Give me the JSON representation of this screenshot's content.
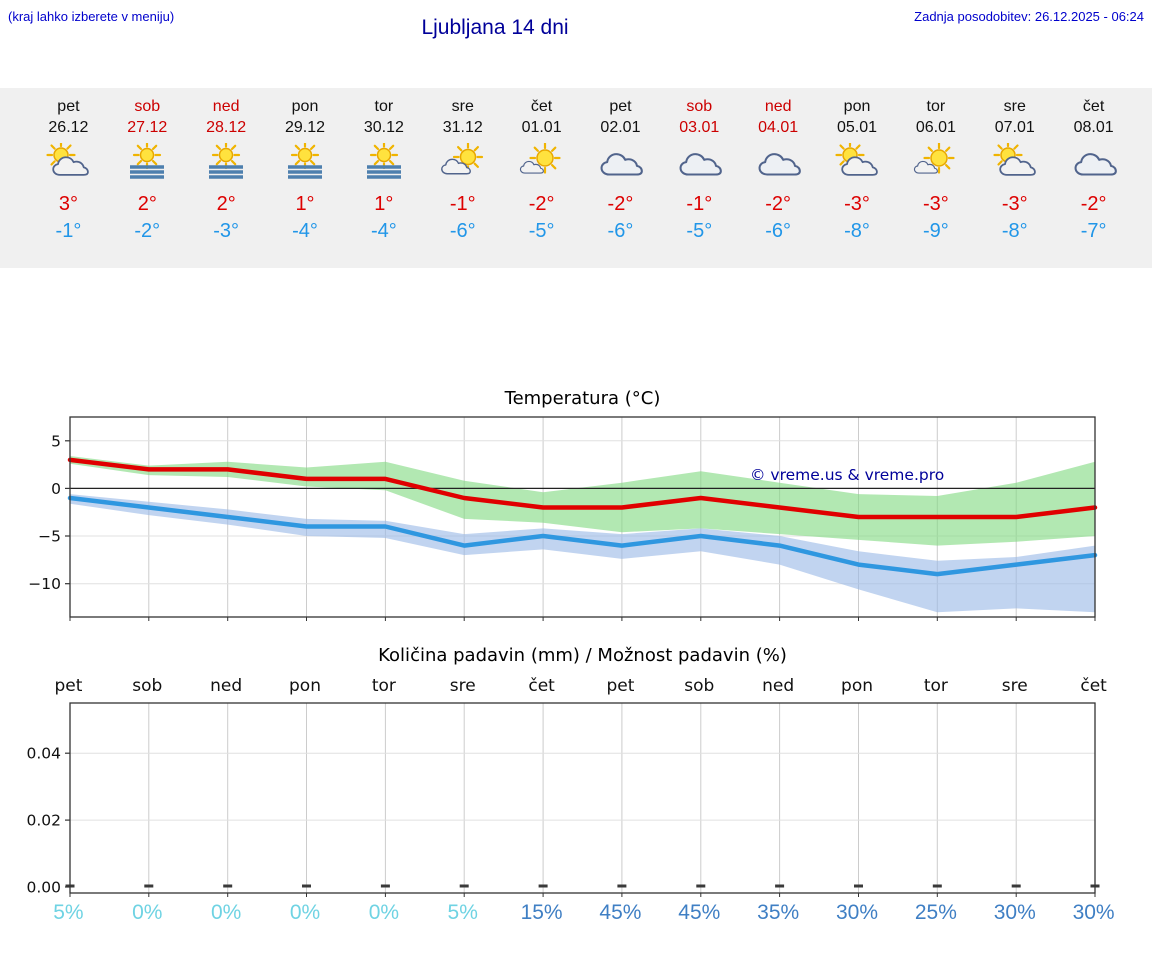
{
  "header": {
    "menu_hint": "(kraj lahko izberete v meniju)",
    "title": "Ljubljana 14 dni",
    "last_updated": "Zadnja posodobitev: 26.12.2025 - 06:24"
  },
  "colors": {
    "header_blue": "#0000cc",
    "title_blue": "#000099",
    "high_red": "#dd0000",
    "low_blue": "#2196e8",
    "weekend_red": "#cc0000",
    "strip_bg": "#f0f0f0",
    "temp_max_line": "#e00000",
    "temp_min_line": "#2f97e0",
    "temp_max_band": "#7ed87e",
    "temp_min_band": "#97b7e6",
    "percent_low": "#6fd3e3",
    "percent_high": "#3f7fc4"
  },
  "days": [
    {
      "name": "pet",
      "date": "26.12",
      "weekend": false,
      "icon": "partly-cloudy-icon",
      "high": "3°",
      "low": "-1°"
    },
    {
      "name": "sob",
      "date": "27.12",
      "weekend": true,
      "icon": "fog-sun-icon",
      "high": "2°",
      "low": "-2°"
    },
    {
      "name": "ned",
      "date": "28.12",
      "weekend": true,
      "icon": "fog-sun-icon",
      "high": "2°",
      "low": "-3°"
    },
    {
      "name": "pon",
      "date": "29.12",
      "weekend": false,
      "icon": "fog-sun-icon",
      "high": "1°",
      "low": "-4°"
    },
    {
      "name": "tor",
      "date": "30.12",
      "weekend": false,
      "icon": "fog-sun-icon",
      "high": "1°",
      "low": "-4°"
    },
    {
      "name": "sre",
      "date": "31.12",
      "weekend": false,
      "icon": "sun-cloud-icon",
      "high": "-1°",
      "low": "-6°"
    },
    {
      "name": "čet",
      "date": "01.01",
      "weekend": false,
      "icon": "mostly-sunny-icon",
      "high": "-2°",
      "low": "-5°"
    },
    {
      "name": "pet",
      "date": "02.01",
      "weekend": false,
      "icon": "cloudy-icon",
      "high": "-2°",
      "low": "-6°"
    },
    {
      "name": "sob",
      "date": "03.01",
      "weekend": true,
      "icon": "cloudy-icon",
      "high": "-1°",
      "low": "-5°"
    },
    {
      "name": "ned",
      "date": "04.01",
      "weekend": true,
      "icon": "cloudy-icon",
      "high": "-2°",
      "low": "-6°"
    },
    {
      "name": "pon",
      "date": "05.01",
      "weekend": false,
      "icon": "partly-cloudy-icon",
      "high": "-3°",
      "low": "-8°"
    },
    {
      "name": "tor",
      "date": "06.01",
      "weekend": false,
      "icon": "mostly-sunny-icon",
      "high": "-3°",
      "low": "-9°"
    },
    {
      "name": "sre",
      "date": "07.01",
      "weekend": false,
      "icon": "partly-cloudy-icon",
      "high": "-3°",
      "low": "-8°"
    },
    {
      "name": "čet",
      "date": "08.01",
      "weekend": false,
      "icon": "cloudy-icon",
      "high": "-2°",
      "low": "-7°"
    }
  ],
  "chart_data": [
    {
      "type": "line",
      "title": "Temperatura (°C)",
      "categories": [
        "pet",
        "sob",
        "ned",
        "pon",
        "tor",
        "sre",
        "čet",
        "pet",
        "sob",
        "ned",
        "pon",
        "tor",
        "sre",
        "čet"
      ],
      "series": [
        {
          "name": "max-temp",
          "color": "#e00000",
          "values": [
            3,
            2,
            2,
            1,
            1,
            -1,
            -2,
            -2,
            -1,
            -2,
            -3,
            -3,
            -3,
            -2
          ]
        },
        {
          "name": "min-temp",
          "color": "#2f97e0",
          "values": [
            -1,
            -2,
            -3,
            -4,
            -4,
            -6,
            -5,
            -6,
            -5,
            -6,
            -8,
            -9,
            -8,
            -7
          ]
        }
      ],
      "bands": [
        {
          "name": "max-temp-range",
          "color": "#7ed87e",
          "upper": [
            3.4,
            2.4,
            2.8,
            2.2,
            2.8,
            0.8,
            -0.4,
            0.6,
            1.8,
            0.6,
            -0.6,
            -0.8,
            0.6,
            2.8
          ],
          "lower": [
            2.6,
            1.4,
            1.2,
            0.2,
            -0.2,
            -3.2,
            -3.6,
            -4.6,
            -4.2,
            -4.8,
            -5.4,
            -6.0,
            -5.6,
            -5.0
          ]
        },
        {
          "name": "min-temp-range",
          "color": "#97b7e6",
          "upper": [
            -0.6,
            -1.4,
            -2.2,
            -3.2,
            -3.4,
            -4.8,
            -4.2,
            -4.8,
            -4.2,
            -5.0,
            -6.6,
            -7.6,
            -7.2,
            -6.0
          ],
          "lower": [
            -1.6,
            -2.8,
            -3.8,
            -5.0,
            -5.2,
            -7.0,
            -6.4,
            -7.4,
            -6.6,
            -8.0,
            -10.6,
            -13.0,
            -12.6,
            -13.0
          ]
        }
      ],
      "yticks": [
        {
          "label": "5",
          "value": 5
        },
        {
          "label": "0",
          "value": 0
        },
        {
          "label": "−5",
          "value": -5
        },
        {
          "label": "−10",
          "value": -10
        }
      ],
      "ylim": [
        -13.5,
        7.5
      ],
      "grid": true,
      "watermark": "© vreme.us & vreme.pro"
    },
    {
      "type": "bar",
      "title": "Količina padavin (mm) / Možnost padavin (%)",
      "categories": [
        "pet",
        "sob",
        "ned",
        "pon",
        "tor",
        "sre",
        "čet",
        "pet",
        "sob",
        "ned",
        "pon",
        "tor",
        "sre",
        "čet"
      ],
      "values": [
        0,
        0,
        0,
        0,
        0,
        0,
        0,
        0,
        0,
        0,
        0,
        0,
        0,
        0
      ],
      "yticks": [
        {
          "label": "0.00",
          "value": 0
        },
        {
          "label": "0.02",
          "value": 0.02
        },
        {
          "label": "0.04",
          "value": 0.04
        }
      ],
      "ylim": [
        0,
        0.055
      ],
      "grid": true,
      "probabilities": [
        {
          "label": "5%",
          "level": "low"
        },
        {
          "label": "0%",
          "level": "low"
        },
        {
          "label": "0%",
          "level": "low"
        },
        {
          "label": "0%",
          "level": "low"
        },
        {
          "label": "0%",
          "level": "low"
        },
        {
          "label": "5%",
          "level": "low"
        },
        {
          "label": "15%",
          "level": "high"
        },
        {
          "label": "45%",
          "level": "high"
        },
        {
          "label": "45%",
          "level": "high"
        },
        {
          "label": "35%",
          "level": "high"
        },
        {
          "label": "30%",
          "level": "high"
        },
        {
          "label": "25%",
          "level": "high"
        },
        {
          "label": "30%",
          "level": "high"
        },
        {
          "label": "30%",
          "level": "high"
        }
      ]
    }
  ]
}
